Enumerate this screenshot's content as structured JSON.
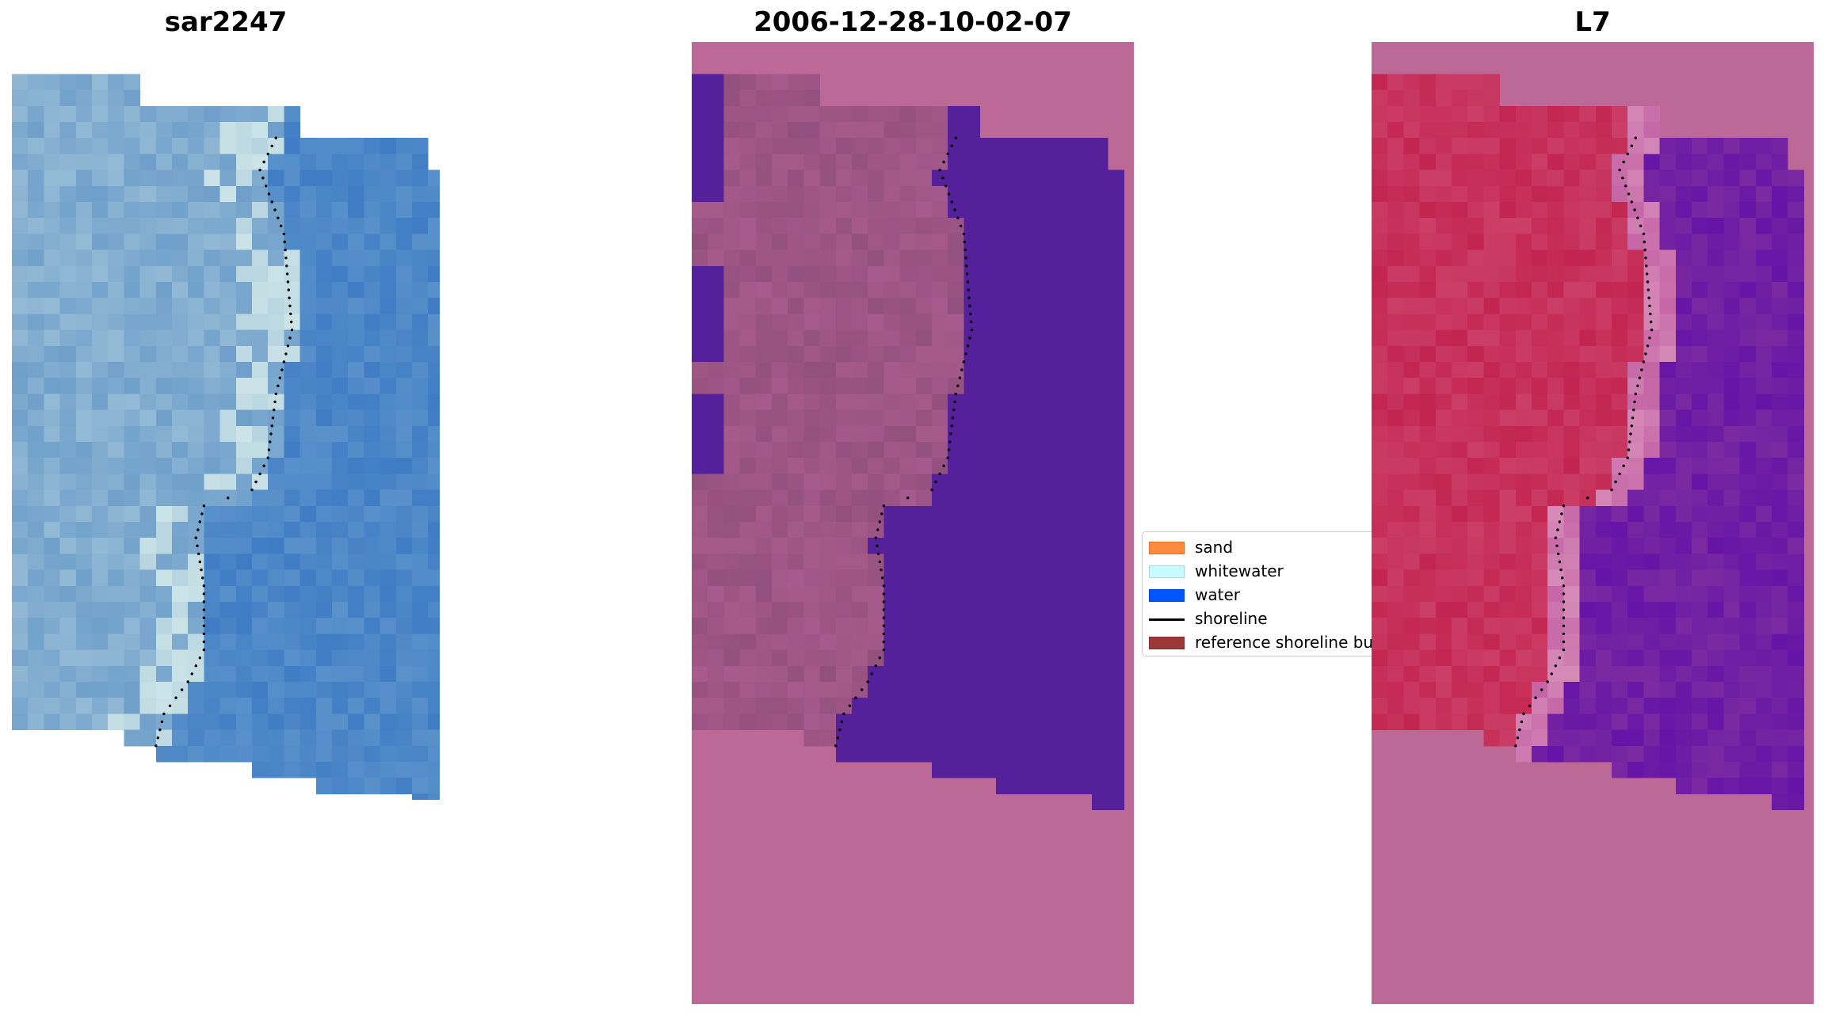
{
  "panels": [
    {
      "title": "sar2247"
    },
    {
      "title": "2006-12-28-10-02-07"
    },
    {
      "title": "L7"
    }
  ],
  "legend": {
    "items": [
      {
        "label": "sand",
        "color": "#ff8a3d",
        "kind": "patch"
      },
      {
        "label": "whitewater",
        "color": "#c8fbff",
        "kind": "patch"
      },
      {
        "label": "water",
        "color": "#0055ff",
        "kind": "patch"
      },
      {
        "label": "shoreline",
        "color": "#000000",
        "kind": "line"
      },
      {
        "label": "reference shoreline buffer",
        "color": "#9e3737",
        "kind": "patch"
      }
    ]
  },
  "colors": {
    "sar_water_blue": "#4a84c6",
    "sar_whitewater": "#a9cfd3",
    "class_background_pink": "#bd6997",
    "class_water_purple": "#54219b",
    "class_land_mauve": "#93507f",
    "index_land_red": "#c2254f",
    "index_water_purple": "#7b2aa1"
  }
}
